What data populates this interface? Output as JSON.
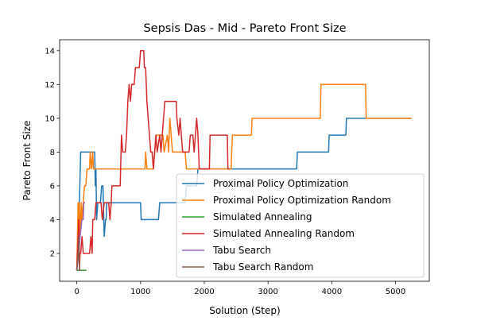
{
  "chart_data": {
    "type": "line",
    "title": "Sepsis Das - Mid - Pareto Front Size",
    "xlabel": "Solution (Step)",
    "ylabel": "Pareto Front Size",
    "xlim": [
      -270,
      5530
    ],
    "ylim": [
      0.35,
      14.65
    ],
    "xticks": [
      0,
      1000,
      2000,
      3000,
      4000,
      5000
    ],
    "yticks": [
      2,
      4,
      6,
      8,
      10,
      12,
      14
    ],
    "grid": false,
    "legend_position": "lower-right",
    "series": [
      {
        "name": "Proximal Policy Optimization",
        "color": "#1f77b4",
        "points": [
          [
            0,
            1
          ],
          [
            20,
            2
          ],
          [
            40,
            5
          ],
          [
            60,
            8
          ],
          [
            280,
            8
          ],
          [
            290,
            6
          ],
          [
            300,
            7
          ],
          [
            310,
            4
          ],
          [
            330,
            5
          ],
          [
            370,
            5
          ],
          [
            390,
            6
          ],
          [
            410,
            6
          ],
          [
            430,
            3
          ],
          [
            450,
            4
          ],
          [
            460,
            4
          ],
          [
            470,
            5
          ],
          [
            580,
            5
          ],
          [
            600,
            5
          ],
          [
            1000,
            5
          ],
          [
            1010,
            4
          ],
          [
            1280,
            4
          ],
          [
            1300,
            5
          ],
          [
            1700,
            5
          ],
          [
            1720,
            6
          ],
          [
            1880,
            6
          ],
          [
            1900,
            7
          ],
          [
            3450,
            7
          ],
          [
            3460,
            8
          ],
          [
            3950,
            8
          ],
          [
            3960,
            9
          ],
          [
            4220,
            9
          ],
          [
            4230,
            10
          ],
          [
            5250,
            10
          ]
        ]
      },
      {
        "name": "Proximal Policy Optimization Random",
        "color": "#ff7f0e",
        "points": [
          [
            0,
            1
          ],
          [
            10,
            3
          ],
          [
            20,
            5
          ],
          [
            30,
            2
          ],
          [
            40,
            5
          ],
          [
            50,
            3
          ],
          [
            60,
            4
          ],
          [
            70,
            5
          ],
          [
            80,
            4
          ],
          [
            100,
            5
          ],
          [
            120,
            6
          ],
          [
            140,
            6
          ],
          [
            160,
            7
          ],
          [
            200,
            7
          ],
          [
            210,
            8
          ],
          [
            230,
            7
          ],
          [
            250,
            8
          ],
          [
            260,
            7
          ],
          [
            1070,
            7
          ],
          [
            1080,
            8
          ],
          [
            1100,
            7
          ],
          [
            1200,
            7
          ],
          [
            1220,
            8
          ],
          [
            1250,
            9
          ],
          [
            1350,
            9
          ],
          [
            1370,
            8
          ],
          [
            1420,
            9
          ],
          [
            1440,
            8
          ],
          [
            1460,
            10
          ],
          [
            1480,
            9
          ],
          [
            1500,
            8
          ],
          [
            1700,
            8
          ],
          [
            1720,
            7
          ],
          [
            2420,
            7
          ],
          [
            2440,
            9
          ],
          [
            2740,
            9
          ],
          [
            2750,
            10
          ],
          [
            3820,
            10
          ],
          [
            3830,
            12
          ],
          [
            4530,
            12
          ],
          [
            4540,
            10
          ],
          [
            5250,
            10
          ]
        ]
      },
      {
        "name": "Simulated Annealing",
        "color": "#2ca02c",
        "points": [
          [
            0,
            1
          ],
          [
            150,
            1
          ]
        ]
      },
      {
        "name": "Simulated Annealing Random",
        "color": "#d62728",
        "points": [
          [
            0,
            1
          ],
          [
            10,
            2
          ],
          [
            20,
            3
          ],
          [
            30,
            4
          ],
          [
            40,
            1
          ],
          [
            50,
            2
          ],
          [
            60,
            2
          ],
          [
            80,
            3
          ],
          [
            100,
            2
          ],
          [
            200,
            2
          ],
          [
            220,
            3
          ],
          [
            240,
            2
          ],
          [
            250,
            4
          ],
          [
            280,
            4
          ],
          [
            300,
            5
          ],
          [
            380,
            5
          ],
          [
            400,
            4
          ],
          [
            430,
            5
          ],
          [
            500,
            5
          ],
          [
            520,
            4
          ],
          [
            540,
            5
          ],
          [
            550,
            6
          ],
          [
            680,
            6
          ],
          [
            700,
            9
          ],
          [
            720,
            8
          ],
          [
            760,
            8
          ],
          [
            780,
            9
          ],
          [
            800,
            11
          ],
          [
            820,
            12
          ],
          [
            840,
            11
          ],
          [
            860,
            12
          ],
          [
            900,
            12
          ],
          [
            920,
            13
          ],
          [
            980,
            13
          ],
          [
            1000,
            14
          ],
          [
            1050,
            14
          ],
          [
            1060,
            13
          ],
          [
            1080,
            13
          ],
          [
            1100,
            11
          ],
          [
            1120,
            10
          ],
          [
            1140,
            9
          ],
          [
            1160,
            8
          ],
          [
            1180,
            8
          ],
          [
            1200,
            7
          ],
          [
            1220,
            8
          ],
          [
            1240,
            9
          ],
          [
            1260,
            8
          ],
          [
            1300,
            9
          ],
          [
            1320,
            8
          ],
          [
            1340,
            9
          ],
          [
            1360,
            10
          ],
          [
            1380,
            11
          ],
          [
            1560,
            11
          ],
          [
            1570,
            10
          ],
          [
            1600,
            9
          ],
          [
            1620,
            10
          ],
          [
            1640,
            9
          ],
          [
            1660,
            8
          ],
          [
            1760,
            8
          ],
          [
            1780,
            9
          ],
          [
            1820,
            9
          ],
          [
            1840,
            8
          ],
          [
            1860,
            9
          ],
          [
            1880,
            10
          ],
          [
            1900,
            9
          ],
          [
            1920,
            7
          ],
          [
            2080,
            7
          ],
          [
            2090,
            9
          ],
          [
            2360,
            9
          ],
          [
            2370,
            7
          ],
          [
            2400,
            7
          ]
        ]
      },
      {
        "name": "Tabu Search",
        "color": "#9467bd",
        "points": [
          [
            0,
            1
          ],
          [
            30,
            2
          ],
          [
            50,
            3
          ],
          [
            80,
            4
          ],
          [
            100,
            4
          ],
          [
            110,
            5
          ],
          [
            130,
            5
          ]
        ]
      },
      {
        "name": "Tabu Search Random",
        "color": "#8c564b",
        "points": [
          [
            0,
            1
          ],
          [
            20,
            2
          ],
          [
            30,
            3
          ],
          [
            40,
            1
          ],
          [
            60,
            1
          ]
        ]
      }
    ]
  }
}
